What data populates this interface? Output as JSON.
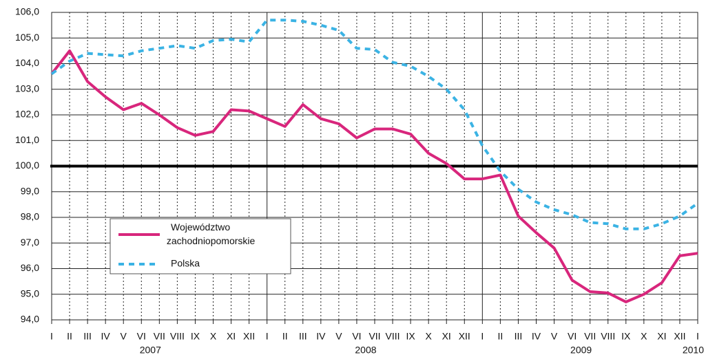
{
  "chart_data": {
    "type": "line",
    "categories": [
      "I",
      "II",
      "III",
      "IV",
      "V",
      "VI",
      "VII",
      "VIII",
      "IX",
      "X",
      "XI",
      "XII",
      "I",
      "II",
      "III",
      "IV",
      "V",
      "VI",
      "VII",
      "VIII",
      "IX",
      "X",
      "XI",
      "XII",
      "I",
      "II",
      "III",
      "IV",
      "V",
      "VI",
      "VII",
      "VIII",
      "IX",
      "X",
      "XI",
      "XII",
      "I"
    ],
    "years": [
      "2007",
      "2008",
      "2009",
      "2010"
    ],
    "series": [
      {
        "name": "Województwo zachodniopomorskie",
        "color": "#d8267c",
        "dash": false,
        "values": [
          103.6,
          104.5,
          103.3,
          102.7,
          102.2,
          102.45,
          102.0,
          101.5,
          101.2,
          101.35,
          102.2,
          102.15,
          101.85,
          101.55,
          102.4,
          101.85,
          101.65,
          101.1,
          101.45,
          101.45,
          101.25,
          100.5,
          100.1,
          99.5,
          99.5,
          99.65,
          98.05,
          97.4,
          96.8,
          95.55,
          95.1,
          95.05,
          94.7,
          95.0,
          95.45,
          96.5,
          96.6
        ]
      },
      {
        "name": "Polska",
        "color": "#3bb3e4",
        "dash": true,
        "values": [
          103.6,
          104.1,
          104.4,
          104.35,
          104.3,
          104.5,
          104.6,
          104.7,
          104.6,
          104.9,
          104.95,
          104.85,
          105.7,
          105.7,
          105.65,
          105.5,
          105.3,
          104.6,
          104.55,
          104.05,
          103.9,
          103.5,
          103.0,
          102.2,
          100.8,
          99.8,
          99.1,
          98.6,
          98.3,
          98.1,
          97.8,
          97.75,
          97.55,
          97.55,
          97.75,
          98.05,
          98.55
        ]
      }
    ],
    "ylim": [
      94,
      106
    ],
    "yticks": [
      {
        "value": 94,
        "label": "94,0"
      },
      {
        "value": 95,
        "label": "95,0"
      },
      {
        "value": 96,
        "label": "96,0"
      },
      {
        "value": 97,
        "label": "97,0"
      },
      {
        "value": 98,
        "label": "98,0"
      },
      {
        "value": 99,
        "label": "99,0"
      },
      {
        "value": 100,
        "label": "100,0"
      },
      {
        "value": 101,
        "label": "101,0"
      },
      {
        "value": 102,
        "label": "102,0"
      },
      {
        "value": 103,
        "label": "103,0"
      },
      {
        "value": 104,
        "label": "104,0"
      },
      {
        "value": 105,
        "label": "105,0"
      },
      {
        "value": 106,
        "label": "106,0"
      }
    ],
    "reference_line": 100,
    "grid": true,
    "legend": "lower-left"
  }
}
